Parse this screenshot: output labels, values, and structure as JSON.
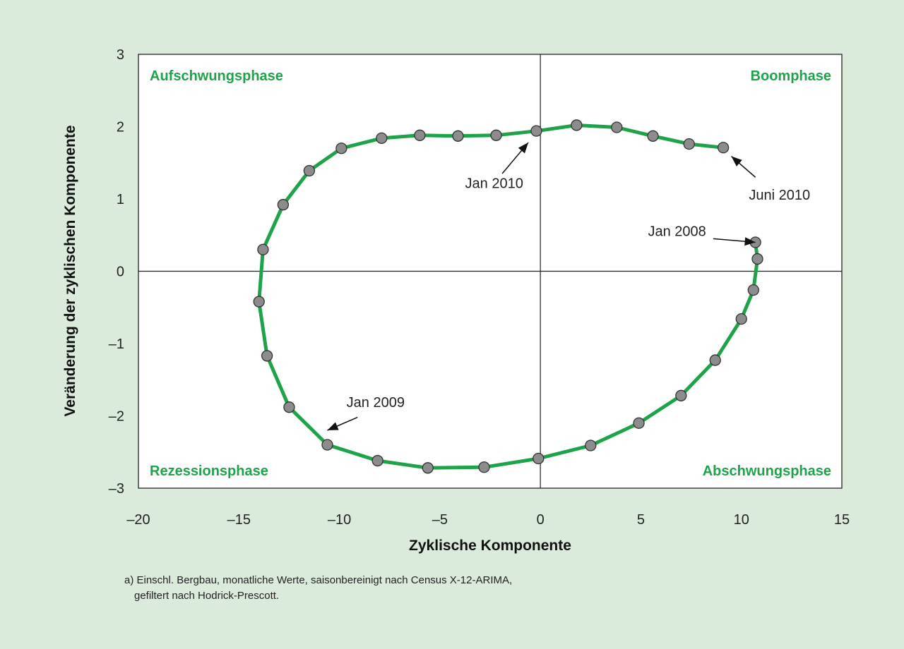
{
  "chart_data": {
    "type": "line",
    "xlabel": "Zyklische Komponente",
    "ylabel": "Veränderung der zyklischen Komponente",
    "xlim": [
      -20,
      15
    ],
    "ylim": [
      -3,
      3
    ],
    "x_ticks": [
      -20,
      -15,
      -10,
      -5,
      0,
      5,
      10,
      15
    ],
    "x_tick_labels": [
      "–20",
      "–15",
      "–10",
      "–5",
      "0",
      "5",
      "10",
      "15"
    ],
    "y_ticks": [
      3,
      2,
      1,
      0,
      -1,
      -2,
      -3
    ],
    "y_tick_labels": [
      "3",
      "2",
      "1",
      "0",
      "–1",
      "–2",
      "–3"
    ],
    "grid": false,
    "series": [
      {
        "color": "#1fa34a",
        "marker_color": "#8c8c8c",
        "points": [
          [
            10.7,
            0.4
          ],
          [
            10.8,
            0.17
          ],
          [
            10.6,
            -0.26
          ],
          [
            10.0,
            -0.66
          ],
          [
            8.7,
            -1.23
          ],
          [
            7.0,
            -1.72
          ],
          [
            4.9,
            -2.1
          ],
          [
            2.5,
            -2.41
          ],
          [
            -0.1,
            -2.59
          ],
          [
            -2.8,
            -2.71
          ],
          [
            -5.6,
            -2.72
          ],
          [
            -8.1,
            -2.62
          ],
          [
            -10.6,
            -2.4
          ],
          [
            -12.5,
            -1.88
          ],
          [
            -13.6,
            -1.17
          ],
          [
            -14.0,
            -0.42
          ],
          [
            -13.8,
            0.3
          ],
          [
            -12.8,
            0.92
          ],
          [
            -11.5,
            1.39
          ],
          [
            -9.9,
            1.7
          ],
          [
            -7.9,
            1.84
          ],
          [
            -6.0,
            1.88
          ],
          [
            -4.1,
            1.87
          ],
          [
            -2.2,
            1.88
          ],
          [
            -0.2,
            1.94
          ],
          [
            1.8,
            2.02
          ],
          [
            3.8,
            1.99
          ],
          [
            5.6,
            1.87
          ],
          [
            7.4,
            1.76
          ],
          [
            9.1,
            1.71
          ]
        ]
      }
    ],
    "quadrant_labels": {
      "top_left": "Aufschwungsphase",
      "top_right": "Boomphase",
      "bottom_left": "Rezessionsphase",
      "bottom_right": "Abschwungsphase"
    },
    "annotations": [
      {
        "text": "Jan 2008",
        "target": [
          10.7,
          0.4
        ],
        "text_pos": [
          6.8,
          0.49
        ],
        "arrow_from": [
          8.6,
          0.45
        ]
      },
      {
        "text": "Jan 2009",
        "target": [
          -10.6,
          -2.2
        ],
        "text_pos": [
          -8.2,
          -1.88
        ],
        "arrow_from": [
          -9.1,
          -2.02
        ]
      },
      {
        "text": "Jan 2010",
        "target": [
          -0.6,
          1.78
        ],
        "text_pos": [
          -2.3,
          1.15
        ],
        "arrow_from": [
          -1.9,
          1.35
        ]
      },
      {
        "text": "Juni 2010",
        "target": [
          9.5,
          1.59
        ],
        "text_pos": [
          11.9,
          0.99
        ],
        "arrow_from": [
          10.7,
          1.3
        ]
      }
    ]
  },
  "footnote": {
    "line1": "a) Einschl. Bergbau, monatliche Werte, saisonbereinigt nach Census X-12-ARIMA,",
    "line2": "gefiltert nach Hodrick-Prescott."
  }
}
